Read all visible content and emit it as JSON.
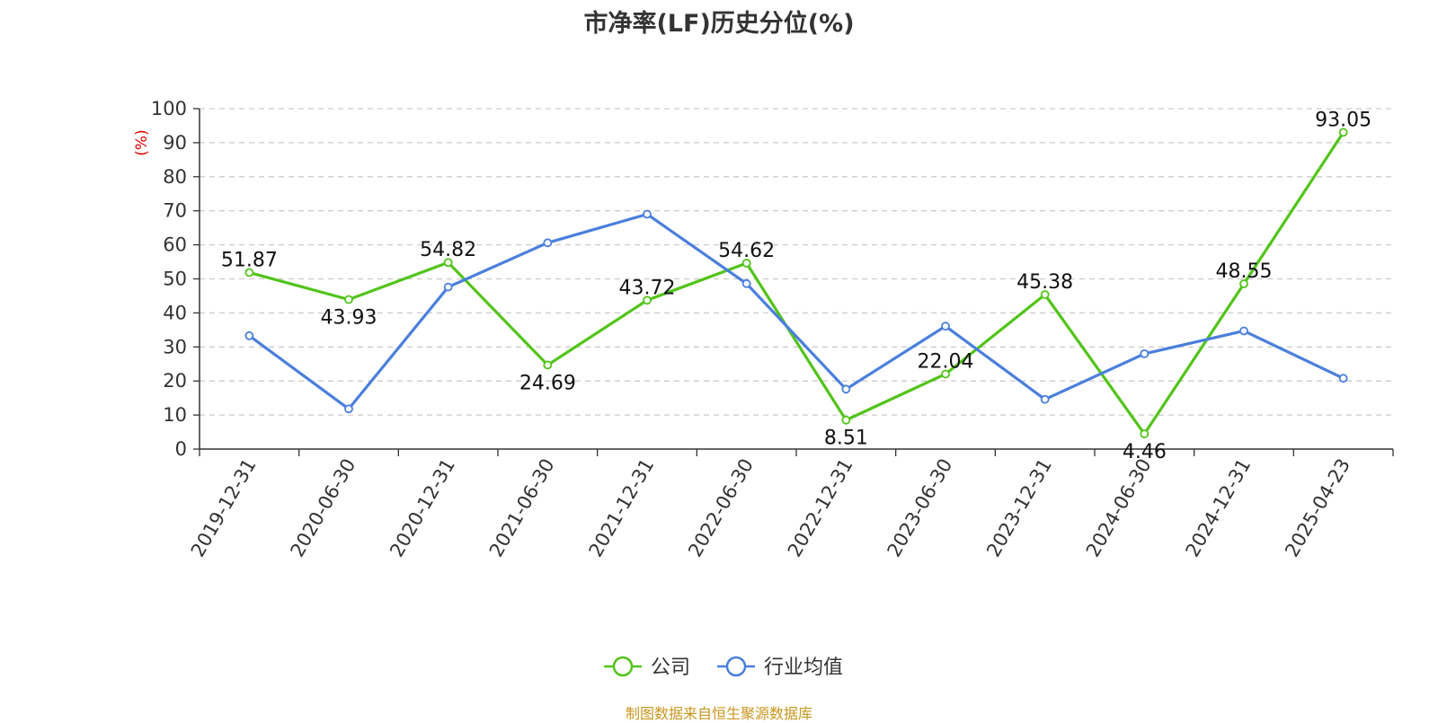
{
  "chart_data": {
    "type": "line",
    "title": "市净率(LF)历史分位(%)",
    "ylabel": "(%)",
    "ylim": [
      0,
      100
    ],
    "yticks": [
      0,
      10,
      20,
      30,
      40,
      50,
      60,
      70,
      80,
      90,
      100
    ],
    "grid": true,
    "legend_position": "bottom",
    "categories": [
      "2019-12-31",
      "2020-06-30",
      "2020-12-31",
      "2021-06-30",
      "2021-12-31",
      "2022-06-30",
      "2022-12-31",
      "2023-06-30",
      "2023-12-31",
      "2024-06-30",
      "2024-12-31",
      "2025-04-23"
    ],
    "series": [
      {
        "name": "公司",
        "color": "#52c41a",
        "values": [
          51.87,
          43.93,
          54.82,
          24.69,
          43.72,
          54.62,
          8.51,
          22.04,
          45.38,
          4.46,
          48.55,
          93.05
        ],
        "labels": [
          "51.87",
          "43.93",
          "54.82",
          "24.69",
          "43.72",
          "54.62",
          "8.51",
          "22.04",
          "45.38",
          "4.46",
          "48.55",
          "93.05"
        ]
      },
      {
        "name": "行业均值",
        "color": "#4a7fdc",
        "values": [
          33.3,
          11.8,
          47.6,
          60.6,
          69.0,
          48.6,
          17.6,
          36.1,
          14.6,
          28.0,
          34.7,
          20.8
        ]
      }
    ]
  },
  "source": "制图数据来自恒生聚源数据库"
}
